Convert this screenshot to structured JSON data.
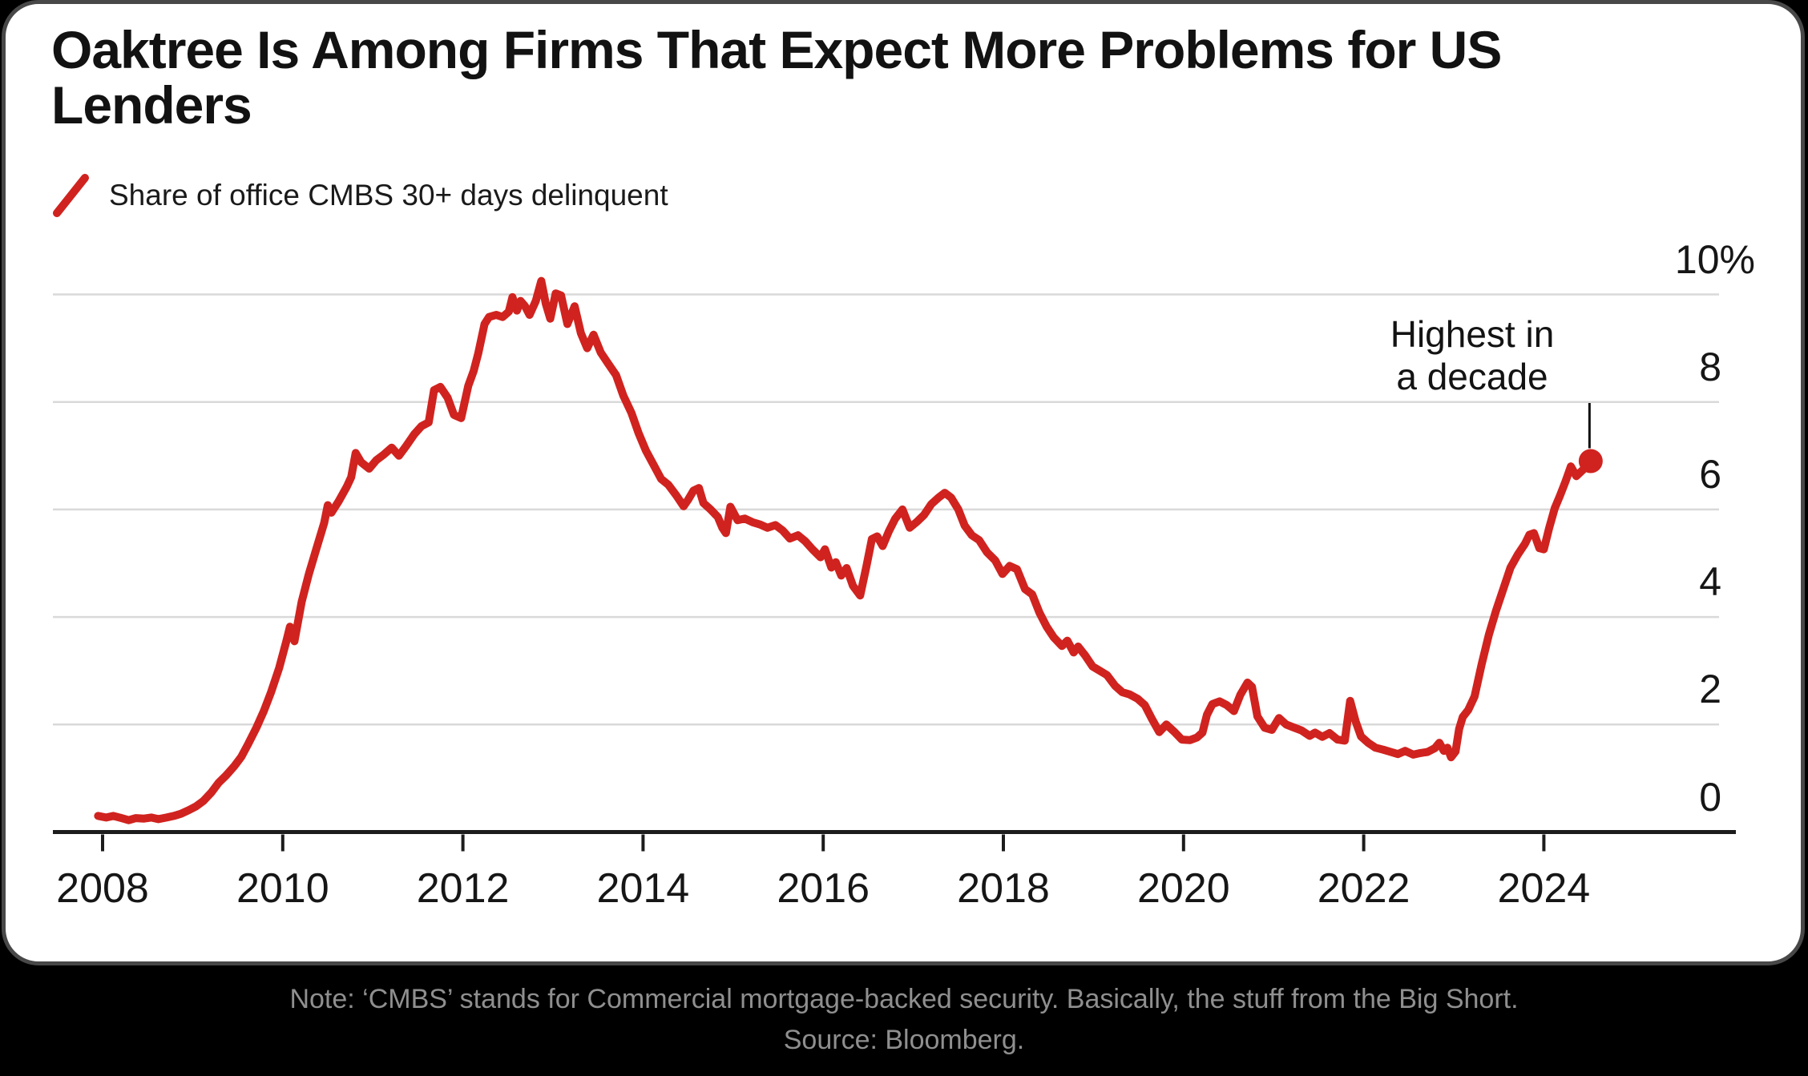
{
  "page": {
    "background": "#000000"
  },
  "card": {
    "background": "#ffffff",
    "border_color": "#484848"
  },
  "title": {
    "text": "Oaktree Is Among Firms That Expect More Problems for US Lenders",
    "lines": [
      "Oaktree Is Among Firms That Expect More Problems for US",
      "Lenders"
    ]
  },
  "legend": {
    "label": "Share of office CMBS 30+ days delinquent",
    "marker": "red-slash",
    "marker_color": "#d0231f"
  },
  "annotation": {
    "line1": "Highest in",
    "line2": "a decade",
    "points_to": "latest data point"
  },
  "footer": {
    "note": "Note: ‘CMBS’ stands for Commercial mortgage-backed security. Basically, the stuff from the Big Short.",
    "source": "Source: Bloomberg.",
    "text_color": "#8f8f8f"
  },
  "chart_data": {
    "type": "line",
    "series_name": "Share of office CMBS 30+ days delinquent",
    "line_color": "#d0231f",
    "grid_color": "#d9d9d9",
    "axis_color": "#1c1c1c",
    "grid": "horizontal gridlines only",
    "legend_position": "top-left",
    "y_axis_side": "right",
    "ylim": [
      0,
      10.6
    ],
    "xlim": [
      2007.9,
      2026
    ],
    "x_ticks": [
      2008,
      2010,
      2012,
      2014,
      2016,
      2018,
      2020,
      2022,
      2024
    ],
    "y_ticks": {
      "values": [
        10,
        8,
        6,
        4,
        2,
        0
      ],
      "labels": [
        "10%",
        "8",
        "6",
        "4",
        "2",
        "0"
      ]
    },
    "latest_point": {
      "x": 2024.52,
      "y": 6.9
    },
    "peak_point": {
      "x": 2012.87,
      "y": 10.25
    },
    "points": [
      [
        2007.95,
        0.3
      ],
      [
        2008.04,
        0.27
      ],
      [
        2008.12,
        0.3
      ],
      [
        2008.21,
        0.26
      ],
      [
        2008.29,
        0.22
      ],
      [
        2008.37,
        0.26
      ],
      [
        2008.46,
        0.25
      ],
      [
        2008.54,
        0.27
      ],
      [
        2008.62,
        0.24
      ],
      [
        2008.71,
        0.27
      ],
      [
        2008.79,
        0.3
      ],
      [
        2008.87,
        0.34
      ],
      [
        2008.96,
        0.41
      ],
      [
        2009.04,
        0.48
      ],
      [
        2009.12,
        0.58
      ],
      [
        2009.21,
        0.74
      ],
      [
        2009.29,
        0.92
      ],
      [
        2009.37,
        1.05
      ],
      [
        2009.46,
        1.22
      ],
      [
        2009.54,
        1.4
      ],
      [
        2009.62,
        1.65
      ],
      [
        2009.71,
        1.95
      ],
      [
        2009.79,
        2.25
      ],
      [
        2009.87,
        2.6
      ],
      [
        2009.96,
        3.05
      ],
      [
        2010.04,
        3.55
      ],
      [
        2010.08,
        3.82
      ],
      [
        2010.13,
        3.55
      ],
      [
        2010.21,
        4.28
      ],
      [
        2010.29,
        4.8
      ],
      [
        2010.37,
        5.25
      ],
      [
        2010.46,
        5.75
      ],
      [
        2010.5,
        6.08
      ],
      [
        2010.54,
        5.94
      ],
      [
        2010.62,
        6.15
      ],
      [
        2010.71,
        6.42
      ],
      [
        2010.76,
        6.6
      ],
      [
        2010.81,
        7.05
      ],
      [
        2010.87,
        6.88
      ],
      [
        2010.96,
        6.76
      ],
      [
        2011.04,
        6.92
      ],
      [
        2011.12,
        7.02
      ],
      [
        2011.21,
        7.15
      ],
      [
        2011.29,
        7.0
      ],
      [
        2011.37,
        7.18
      ],
      [
        2011.46,
        7.4
      ],
      [
        2011.54,
        7.55
      ],
      [
        2011.62,
        7.62
      ],
      [
        2011.68,
        8.22
      ],
      [
        2011.75,
        8.28
      ],
      [
        2011.83,
        8.08
      ],
      [
        2011.9,
        7.76
      ],
      [
        2011.98,
        7.7
      ],
      [
        2012.06,
        8.3
      ],
      [
        2012.12,
        8.58
      ],
      [
        2012.17,
        8.9
      ],
      [
        2012.24,
        9.45
      ],
      [
        2012.29,
        9.58
      ],
      [
        2012.37,
        9.62
      ],
      [
        2012.44,
        9.58
      ],
      [
        2012.51,
        9.68
      ],
      [
        2012.55,
        9.95
      ],
      [
        2012.6,
        9.7
      ],
      [
        2012.64,
        9.88
      ],
      [
        2012.69,
        9.78
      ],
      [
        2012.74,
        9.62
      ],
      [
        2012.81,
        9.88
      ],
      [
        2012.87,
        10.25
      ],
      [
        2012.92,
        9.83
      ],
      [
        2012.97,
        9.55
      ],
      [
        2013.03,
        10.02
      ],
      [
        2013.09,
        9.98
      ],
      [
        2013.16,
        9.45
      ],
      [
        2013.24,
        9.78
      ],
      [
        2013.31,
        9.28
      ],
      [
        2013.38,
        9.0
      ],
      [
        2013.45,
        9.25
      ],
      [
        2013.53,
        8.92
      ],
      [
        2013.61,
        8.72
      ],
      [
        2013.7,
        8.5
      ],
      [
        2013.78,
        8.12
      ],
      [
        2013.87,
        7.8
      ],
      [
        2013.95,
        7.42
      ],
      [
        2014.03,
        7.1
      ],
      [
        2014.12,
        6.82
      ],
      [
        2014.2,
        6.57
      ],
      [
        2014.28,
        6.46
      ],
      [
        2014.37,
        6.26
      ],
      [
        2014.45,
        6.06
      ],
      [
        2014.5,
        6.18
      ],
      [
        2014.56,
        6.35
      ],
      [
        2014.62,
        6.4
      ],
      [
        2014.67,
        6.12
      ],
      [
        2014.75,
        6.0
      ],
      [
        2014.83,
        5.86
      ],
      [
        2014.88,
        5.66
      ],
      [
        2014.92,
        5.56
      ],
      [
        2014.97,
        6.05
      ],
      [
        2015.05,
        5.8
      ],
      [
        2015.13,
        5.83
      ],
      [
        2015.22,
        5.76
      ],
      [
        2015.3,
        5.72
      ],
      [
        2015.38,
        5.66
      ],
      [
        2015.47,
        5.71
      ],
      [
        2015.55,
        5.61
      ],
      [
        2015.63,
        5.46
      ],
      [
        2015.72,
        5.52
      ],
      [
        2015.8,
        5.41
      ],
      [
        2015.88,
        5.26
      ],
      [
        2015.97,
        5.11
      ],
      [
        2016.02,
        5.26
      ],
      [
        2016.09,
        4.92
      ],
      [
        2016.14,
        5.02
      ],
      [
        2016.2,
        4.77
      ],
      [
        2016.26,
        4.91
      ],
      [
        2016.33,
        4.58
      ],
      [
        2016.41,
        4.4
      ],
      [
        2016.48,
        4.95
      ],
      [
        2016.54,
        5.45
      ],
      [
        2016.6,
        5.5
      ],
      [
        2016.66,
        5.32
      ],
      [
        2016.73,
        5.6
      ],
      [
        2016.8,
        5.83
      ],
      [
        2016.88,
        6.0
      ],
      [
        2016.96,
        5.66
      ],
      [
        2017.04,
        5.77
      ],
      [
        2017.12,
        5.9
      ],
      [
        2017.2,
        6.1
      ],
      [
        2017.28,
        6.22
      ],
      [
        2017.35,
        6.31
      ],
      [
        2017.42,
        6.22
      ],
      [
        2017.5,
        6.0
      ],
      [
        2017.57,
        5.7
      ],
      [
        2017.65,
        5.52
      ],
      [
        2017.73,
        5.43
      ],
      [
        2017.82,
        5.2
      ],
      [
        2017.91,
        5.05
      ],
      [
        2017.99,
        4.8
      ],
      [
        2018.07,
        4.95
      ],
      [
        2018.15,
        4.89
      ],
      [
        2018.24,
        4.52
      ],
      [
        2018.32,
        4.42
      ],
      [
        2018.4,
        4.08
      ],
      [
        2018.48,
        3.82
      ],
      [
        2018.56,
        3.62
      ],
      [
        2018.65,
        3.46
      ],
      [
        2018.71,
        3.56
      ],
      [
        2018.78,
        3.34
      ],
      [
        2018.83,
        3.45
      ],
      [
        2018.91,
        3.28
      ],
      [
        2018.99,
        3.08
      ],
      [
        2019.07,
        3.0
      ],
      [
        2019.15,
        2.92
      ],
      [
        2019.24,
        2.72
      ],
      [
        2019.32,
        2.6
      ],
      [
        2019.4,
        2.56
      ],
      [
        2019.49,
        2.48
      ],
      [
        2019.57,
        2.36
      ],
      [
        2019.65,
        2.1
      ],
      [
        2019.73,
        1.86
      ],
      [
        2019.81,
        2.0
      ],
      [
        2019.9,
        1.86
      ],
      [
        2019.98,
        1.72
      ],
      [
        2020.07,
        1.71
      ],
      [
        2020.15,
        1.76
      ],
      [
        2020.21,
        1.85
      ],
      [
        2020.26,
        2.18
      ],
      [
        2020.32,
        2.38
      ],
      [
        2020.4,
        2.43
      ],
      [
        2020.48,
        2.36
      ],
      [
        2020.56,
        2.25
      ],
      [
        2020.63,
        2.55
      ],
      [
        2020.71,
        2.78
      ],
      [
        2020.76,
        2.7
      ],
      [
        2020.82,
        2.15
      ],
      [
        2020.9,
        1.94
      ],
      [
        2020.98,
        1.9
      ],
      [
        2021.06,
        2.12
      ],
      [
        2021.14,
        2.0
      ],
      [
        2021.23,
        1.94
      ],
      [
        2021.31,
        1.89
      ],
      [
        2021.4,
        1.79
      ],
      [
        2021.46,
        1.85
      ],
      [
        2021.54,
        1.77
      ],
      [
        2021.62,
        1.84
      ],
      [
        2021.71,
        1.72
      ],
      [
        2021.79,
        1.7
      ],
      [
        2021.85,
        2.44
      ],
      [
        2021.91,
        2.06
      ],
      [
        2021.97,
        1.78
      ],
      [
        2022.05,
        1.66
      ],
      [
        2022.13,
        1.57
      ],
      [
        2022.22,
        1.53
      ],
      [
        2022.3,
        1.49
      ],
      [
        2022.38,
        1.45
      ],
      [
        2022.46,
        1.51
      ],
      [
        2022.55,
        1.44
      ],
      [
        2022.63,
        1.47
      ],
      [
        2022.71,
        1.49
      ],
      [
        2022.79,
        1.56
      ],
      [
        2022.84,
        1.66
      ],
      [
        2022.89,
        1.51
      ],
      [
        2022.93,
        1.57
      ],
      [
        2022.97,
        1.39
      ],
      [
        2023.02,
        1.5
      ],
      [
        2023.06,
        1.92
      ],
      [
        2023.1,
        2.14
      ],
      [
        2023.16,
        2.27
      ],
      [
        2023.23,
        2.52
      ],
      [
        2023.31,
        3.12
      ],
      [
        2023.39,
        3.67
      ],
      [
        2023.47,
        4.12
      ],
      [
        2023.55,
        4.52
      ],
      [
        2023.63,
        4.92
      ],
      [
        2023.71,
        5.16
      ],
      [
        2023.79,
        5.36
      ],
      [
        2023.84,
        5.53
      ],
      [
        2023.89,
        5.56
      ],
      [
        2023.95,
        5.28
      ],
      [
        2024.0,
        5.26
      ],
      [
        2024.06,
        5.66
      ],
      [
        2024.12,
        6.02
      ],
      [
        2024.18,
        6.26
      ],
      [
        2024.24,
        6.52
      ],
      [
        2024.3,
        6.8
      ],
      [
        2024.36,
        6.62
      ],
      [
        2024.43,
        6.73
      ],
      [
        2024.52,
        6.9
      ]
    ]
  }
}
